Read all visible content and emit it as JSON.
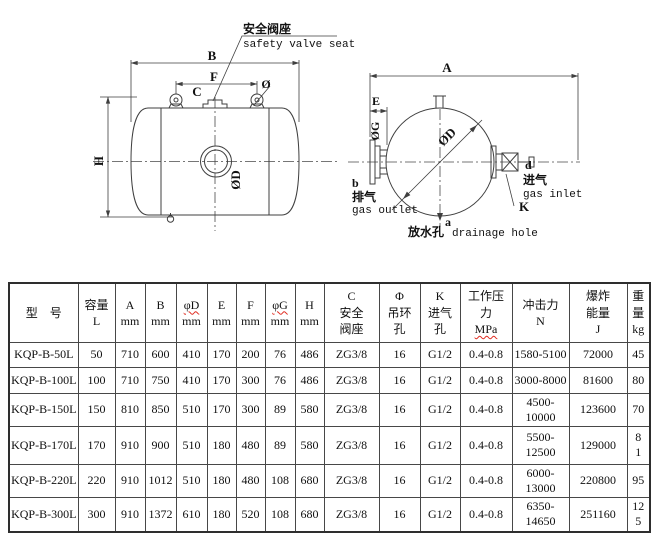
{
  "left_view": {
    "callout_zh": "安全阀座",
    "callout_en": "safety valve seat",
    "labels": {
      "B": "B",
      "F": "F",
      "C": "C",
      "phi": "Ø",
      "H": "H",
      "phiD": "ØD"
    }
  },
  "right_view": {
    "labels": {
      "A": "A",
      "E": "E",
      "phiG": "ØG",
      "phiD": "ØD",
      "K": "K",
      "outlet_letter": "b",
      "outlet_zh": "排气",
      "outlet_en": "gas outlet",
      "inlet_letter": "d",
      "inlet_zh": "进气",
      "inlet_en": "gas inlet",
      "drain_letter": "a",
      "drain_zh": "放水孔",
      "drain_en": "drainage hole"
    }
  },
  "table": {
    "headers": [
      {
        "l1": "型　号",
        "l2": "",
        "l3": ""
      },
      {
        "l1": "容量",
        "l2": "L",
        "l3": ""
      },
      {
        "l1": "A",
        "l2": "mm",
        "l3": ""
      },
      {
        "l1": "B",
        "l2": "mm",
        "l3": ""
      },
      {
        "l1": "φD",
        "l2": "mm",
        "l3": "",
        "wavy_l1": true
      },
      {
        "l1": "E",
        "l2": "mm",
        "l3": ""
      },
      {
        "l1": "F",
        "l2": "mm",
        "l3": ""
      },
      {
        "l1": "φG",
        "l2": "mm",
        "l3": "",
        "wavy_l1": true
      },
      {
        "l1": "H",
        "l2": "mm",
        "l3": ""
      },
      {
        "l1": "C",
        "l2": "安全",
        "l3": "阀座"
      },
      {
        "l1": "Φ",
        "l2": "吊环",
        "l3": "孔"
      },
      {
        "l1": "K",
        "l2": "进气",
        "l3": "孔"
      },
      {
        "l1": "工作压",
        "l2": "力",
        "l3": "MPa",
        "wavy_l3": true
      },
      {
        "l1": "冲击力",
        "l2": "N",
        "l3": ""
      },
      {
        "l1": "爆炸",
        "l2": "能量",
        "l3": "J"
      },
      {
        "l1": "重",
        "l2": "量",
        "l3": "kg"
      }
    ],
    "rows": [
      [
        "KQP-B-50L",
        "50",
        "710",
        "600",
        "410",
        "170",
        "200",
        "76",
        "486",
        "ZG3/8",
        "16",
        "G1/2",
        "0.4-0.8",
        "1580-5100",
        "72000",
        "45"
      ],
      [
        "KQP-B-100L",
        "100",
        "710",
        "750",
        "410",
        "170",
        "300",
        "76",
        "486",
        "ZG3/8",
        "16",
        "G1/2",
        "0.4-0.8",
        "3000-8000",
        "81600",
        "80"
      ],
      [
        "KQP-B-150L",
        "150",
        "810",
        "850",
        "510",
        "170",
        "300",
        "89",
        "580",
        "ZG3/8",
        "16",
        "G1/2",
        "0.4-0.8",
        "4500-10000",
        "123600",
        "70"
      ],
      [
        "KQP-B-170L",
        "170",
        "910",
        "900",
        "510",
        "180",
        "480",
        "89",
        "580",
        "ZG3/8",
        "16",
        "G1/2",
        "0.4-0.8",
        "5500-12500",
        "129000",
        "8\n1"
      ],
      [
        "KQP-B-220L",
        "220",
        "910",
        "1012",
        "510",
        "180",
        "480",
        "108",
        "680",
        "ZG3/8",
        "16",
        "G1/2",
        "0.4-0.8",
        "6000-13000",
        "220800",
        "95"
      ],
      [
        "KQP-B-300L",
        "300",
        "910",
        "1372",
        "610",
        "180",
        "520",
        "108",
        "680",
        "ZG3/8",
        "16",
        "G1/2",
        "0.4-0.8",
        "6350-14650",
        "251160",
        "12\n5"
      ]
    ]
  }
}
